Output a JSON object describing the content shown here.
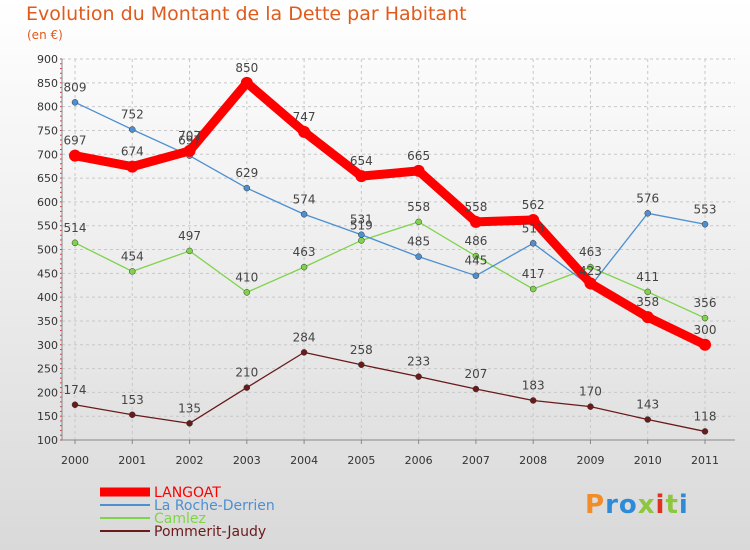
{
  "chart_data": {
    "type": "line",
    "title": "Evolution du Montant de la Dette par Habitant",
    "subtitle": "(en €)",
    "x": [
      "2000",
      "2001",
      "2002",
      "2003",
      "2004",
      "2005",
      "2006",
      "2007",
      "2008",
      "2009",
      "2010",
      "2011"
    ],
    "ylim": [
      100,
      900
    ],
    "yticks": [
      100,
      150,
      200,
      250,
      300,
      350,
      400,
      450,
      500,
      550,
      600,
      650,
      700,
      750,
      800,
      850,
      900
    ],
    "grid": true,
    "legend_position": "bottom-left",
    "series": [
      {
        "name": "LANGOAT",
        "color": "#ff0000",
        "values": [
          697,
          674,
          707,
          850,
          747,
          654,
          665,
          558,
          562,
          429,
          358,
          300
        ],
        "labels": [
          "697",
          "674",
          "707",
          "850",
          "747",
          "654",
          "665",
          "558",
          "562",
          "",
          "358",
          "300"
        ]
      },
      {
        "name": "La Roche-Derrien",
        "color": "#4d8fd0",
        "values": [
          809,
          752,
          697,
          629,
          574,
          531,
          485,
          445,
          513,
          423,
          576,
          553
        ],
        "labels": [
          "809",
          "752",
          "697",
          "629",
          "574",
          "531",
          "485",
          "445",
          "513",
          "423",
          "576",
          "553"
        ]
      },
      {
        "name": "Camlez",
        "color": "#7fd34a",
        "values": [
          514,
          454,
          497,
          410,
          463,
          519,
          558,
          486,
          417,
          463,
          411,
          356
        ],
        "labels": [
          "514",
          "454",
          "497",
          "410",
          "463",
          "519",
          "558",
          "486",
          "417",
          "463",
          "411",
          "356"
        ]
      },
      {
        "name": "Pommerit-Jaudy",
        "color": "#6b1a1a",
        "values": [
          174,
          153,
          135,
          210,
          284,
          258,
          233,
          207,
          183,
          170,
          143,
          118
        ],
        "labels": [
          "174",
          "153",
          "135",
          "210",
          "284",
          "258",
          "233",
          "207",
          "183",
          "170",
          "143",
          "118"
        ]
      }
    ]
  },
  "logo": {
    "text": "Proxiti"
  }
}
